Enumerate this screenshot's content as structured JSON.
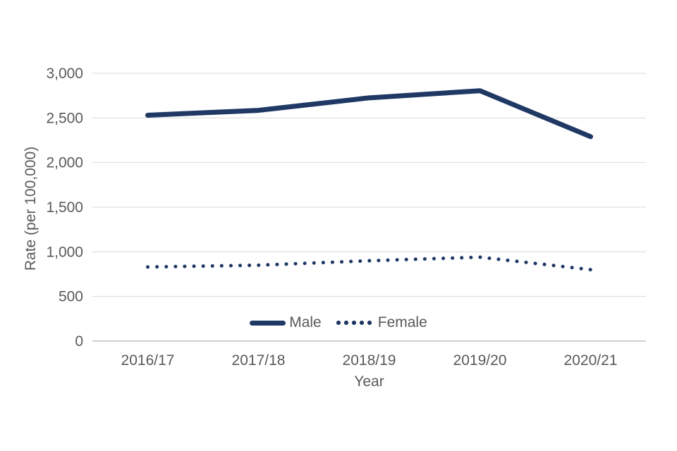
{
  "chart_data": {
    "type": "line",
    "categories": [
      "2016/17",
      "2017/18",
      "2018/19",
      "2019/20",
      "2020/21"
    ],
    "series": [
      {
        "name": "Male",
        "style": "solid",
        "color": "#1f3864",
        "values": [
          2530,
          2585,
          2725,
          2805,
          2290
        ]
      },
      {
        "name": "Female",
        "style": "dotted",
        "color": "#1f3864",
        "values": [
          830,
          850,
          900,
          940,
          800
        ]
      }
    ],
    "title": "",
    "xlabel": "Year",
    "ylabel": "Rate (per 100,000)",
    "ylim": [
      0,
      3000
    ],
    "yticks": [
      0,
      500,
      1000,
      1500,
      2000,
      2500,
      3000
    ],
    "ytick_labels": [
      "0",
      "500",
      "1,000",
      "1,500",
      "2,000",
      "2,500",
      "3,000"
    ],
    "grid": "horizontal",
    "legend_position": "bottom-center",
    "colors": {
      "line": "#1f3864",
      "axis_text": "#595959",
      "gridline": "#d9d9d9",
      "axis_line": "#bfbfbf",
      "background": "#ffffff"
    }
  }
}
